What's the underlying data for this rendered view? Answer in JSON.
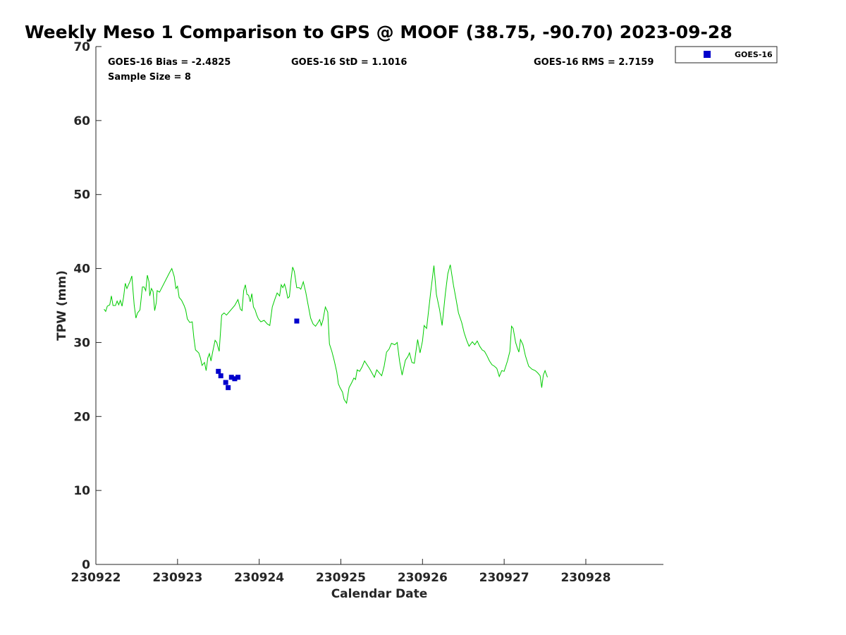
{
  "chart_data": {
    "type": "scatter",
    "title": "Weekly Meso 1 Comparison to GPS @ MOOF (38.75, -90.70) 2023-09-28",
    "xlabel": "Calendar Date",
    "ylabel": "TPW (mm)",
    "xlim": [
      230922,
      230928.95
    ],
    "ylim": [
      0,
      70
    ],
    "x_ticks": [
      230922,
      230923,
      230924,
      230925,
      230926,
      230927,
      230928
    ],
    "x_tick_labels": [
      "230922",
      "230923",
      "230924",
      "230925",
      "230926",
      "230927",
      "230928"
    ],
    "y_ticks": [
      0,
      10,
      20,
      30,
      40,
      50,
      60,
      70
    ],
    "y_tick_labels": [
      "0",
      "10",
      "20",
      "30",
      "40",
      "50",
      "60",
      "70"
    ],
    "grid": false,
    "legend_position": "top-right, outside plot",
    "stats": {
      "bias": "GOES-16 Bias = -2.4825",
      "std": "GOES-16 StD = 1.1016",
      "rms": "GOES-16 RMS = 2.7159",
      "sample": "Sample Size = 8"
    },
    "series": [
      {
        "name": "GOES-16",
        "kind": "scatter",
        "marker": "square",
        "color": "#0000cc",
        "points": [
          [
            230923.5,
            26.1
          ],
          [
            230923.53,
            25.5
          ],
          [
            230923.59,
            24.6
          ],
          [
            230923.62,
            23.9
          ],
          [
            230923.66,
            25.3
          ],
          [
            230923.7,
            25.1
          ],
          [
            230923.74,
            25.3
          ],
          [
            230924.46,
            32.9
          ]
        ]
      },
      {
        "kind": "line",
        "color": "#00cc00",
        "points": [
          [
            230922.1,
            34.5
          ],
          [
            230922.12,
            34.2
          ],
          [
            230922.14,
            34.9
          ],
          [
            230922.17,
            35.1
          ],
          [
            230922.19,
            36.3
          ],
          [
            230922.21,
            35.0
          ],
          [
            230922.24,
            35.0
          ],
          [
            230922.26,
            35.6
          ],
          [
            230922.28,
            35.1
          ],
          [
            230922.3,
            35.7
          ],
          [
            230922.32,
            34.9
          ],
          [
            230922.34,
            36.2
          ],
          [
            230922.36,
            38.0
          ],
          [
            230922.38,
            37.3
          ],
          [
            230922.4,
            37.8
          ],
          [
            230922.42,
            38.3
          ],
          [
            230922.44,
            39.0
          ],
          [
            230922.47,
            35.0
          ],
          [
            230922.49,
            33.3
          ],
          [
            230922.51,
            34.0
          ],
          [
            230922.54,
            34.4
          ],
          [
            230922.57,
            37.5
          ],
          [
            230922.59,
            37.5
          ],
          [
            230922.61,
            37.0
          ],
          [
            230922.63,
            39.1
          ],
          [
            230922.65,
            38.2
          ],
          [
            230922.66,
            36.3
          ],
          [
            230922.68,
            37.3
          ],
          [
            230922.7,
            36.9
          ],
          [
            230922.72,
            34.3
          ],
          [
            230922.74,
            35.4
          ],
          [
            230922.75,
            37.0
          ],
          [
            230922.78,
            36.8
          ],
          [
            230922.9,
            39.4
          ],
          [
            230922.93,
            40.0
          ],
          [
            230922.96,
            38.9
          ],
          [
            230922.98,
            37.3
          ],
          [
            230923.0,
            37.6
          ],
          [
            230923.02,
            36.1
          ],
          [
            230923.05,
            35.7
          ],
          [
            230923.08,
            35.0
          ],
          [
            230923.1,
            34.4
          ],
          [
            230923.12,
            33.2
          ],
          [
            230923.15,
            32.7
          ],
          [
            230923.18,
            32.8
          ],
          [
            230923.2,
            30.6
          ],
          [
            230923.22,
            29.0
          ],
          [
            230923.26,
            28.6
          ],
          [
            230923.28,
            27.9
          ],
          [
            230923.3,
            26.9
          ],
          [
            230923.33,
            27.3
          ],
          [
            230923.35,
            26.2
          ],
          [
            230923.37,
            27.9
          ],
          [
            230923.39,
            28.5
          ],
          [
            230923.41,
            27.5
          ],
          [
            230923.43,
            28.7
          ],
          [
            230923.46,
            30.3
          ],
          [
            230923.48,
            30.0
          ],
          [
            230923.51,
            28.8
          ],
          [
            230923.54,
            33.7
          ],
          [
            230923.57,
            34.0
          ],
          [
            230923.6,
            33.7
          ],
          [
            230923.7,
            35.0
          ],
          [
            230923.74,
            35.8
          ],
          [
            230923.77,
            34.5
          ],
          [
            230923.79,
            34.3
          ],
          [
            230923.81,
            37.0
          ],
          [
            230923.83,
            37.8
          ],
          [
            230923.85,
            36.5
          ],
          [
            230923.87,
            36.4
          ],
          [
            230923.89,
            35.5
          ],
          [
            230923.91,
            36.6
          ],
          [
            230923.93,
            34.8
          ],
          [
            230923.95,
            34.4
          ],
          [
            230923.97,
            33.7
          ],
          [
            230923.99,
            33.2
          ],
          [
            230924.02,
            32.8
          ],
          [
            230924.06,
            33.0
          ],
          [
            230924.1,
            32.5
          ],
          [
            230924.13,
            32.3
          ],
          [
            230924.16,
            34.8
          ],
          [
            230924.19,
            35.8
          ],
          [
            230924.22,
            36.7
          ],
          [
            230924.25,
            36.3
          ],
          [
            230924.27,
            37.8
          ],
          [
            230924.29,
            37.4
          ],
          [
            230924.31,
            37.9
          ],
          [
            230924.33,
            37.1
          ],
          [
            230924.35,
            36.0
          ],
          [
            230924.37,
            36.2
          ],
          [
            230924.39,
            38.5
          ],
          [
            230924.41,
            40.2
          ],
          [
            230924.43,
            39.6
          ],
          [
            230924.46,
            37.4
          ],
          [
            230924.49,
            37.4
          ],
          [
            230924.51,
            37.2
          ],
          [
            230924.54,
            38.2
          ],
          [
            230924.57,
            36.8
          ],
          [
            230924.6,
            35.0
          ],
          [
            230924.63,
            33.3
          ],
          [
            230924.66,
            32.5
          ],
          [
            230924.69,
            32.2
          ],
          [
            230924.72,
            32.7
          ],
          [
            230924.74,
            33.1
          ],
          [
            230924.76,
            32.3
          ],
          [
            230924.78,
            33.0
          ],
          [
            230924.81,
            34.8
          ],
          [
            230924.84,
            34.1
          ],
          [
            230924.86,
            29.8
          ],
          [
            230924.89,
            28.8
          ],
          [
            230924.92,
            27.5
          ],
          [
            230924.95,
            26.0
          ],
          [
            230924.97,
            24.4
          ],
          [
            230924.99,
            23.9
          ],
          [
            230925.02,
            23.3
          ],
          [
            230925.04,
            22.3
          ],
          [
            230925.07,
            21.8
          ],
          [
            230925.1,
            23.9
          ],
          [
            230925.13,
            24.5
          ],
          [
            230925.16,
            25.2
          ],
          [
            230925.18,
            25.0
          ],
          [
            230925.2,
            26.3
          ],
          [
            230925.23,
            26.1
          ],
          [
            230925.26,
            26.7
          ],
          [
            230925.29,
            27.5
          ],
          [
            230925.35,
            26.5
          ],
          [
            230925.41,
            25.3
          ],
          [
            230925.44,
            26.3
          ],
          [
            230925.47,
            25.9
          ],
          [
            230925.5,
            25.5
          ],
          [
            230925.53,
            26.8
          ],
          [
            230925.56,
            28.7
          ],
          [
            230925.59,
            29.1
          ],
          [
            230925.62,
            29.9
          ],
          [
            230925.66,
            29.7
          ],
          [
            230925.69,
            30.0
          ],
          [
            230925.72,
            27.4
          ],
          [
            230925.75,
            25.6
          ],
          [
            230925.79,
            27.6
          ],
          [
            230925.82,
            28.1
          ],
          [
            230925.84,
            28.6
          ],
          [
            230925.87,
            27.3
          ],
          [
            230925.9,
            27.2
          ],
          [
            230925.92,
            28.8
          ],
          [
            230925.94,
            30.4
          ],
          [
            230925.97,
            28.6
          ],
          [
            230926.0,
            30.2
          ],
          [
            230926.02,
            32.3
          ],
          [
            230926.05,
            31.9
          ],
          [
            230926.1,
            36.8
          ],
          [
            230926.14,
            40.4
          ],
          [
            230926.17,
            36.5
          ],
          [
            230926.21,
            34.4
          ],
          [
            230926.24,
            32.3
          ],
          [
            230926.28,
            36.6
          ],
          [
            230926.31,
            39.3
          ],
          [
            230926.34,
            40.5
          ],
          [
            230926.38,
            37.7
          ],
          [
            230926.41,
            35.9
          ],
          [
            230926.44,
            34.0
          ],
          [
            230926.48,
            32.7
          ],
          [
            230926.51,
            31.3
          ],
          [
            230926.54,
            30.3
          ],
          [
            230926.57,
            29.5
          ],
          [
            230926.61,
            30.1
          ],
          [
            230926.64,
            29.7
          ],
          [
            230926.67,
            30.2
          ],
          [
            230926.7,
            29.5
          ],
          [
            230926.73,
            29.0
          ],
          [
            230926.76,
            28.8
          ],
          [
            230926.79,
            28.2
          ],
          [
            230926.82,
            27.5
          ],
          [
            230926.85,
            27.0
          ],
          [
            230926.88,
            26.8
          ],
          [
            230926.91,
            26.5
          ],
          [
            230926.94,
            25.4
          ],
          [
            230926.97,
            26.2
          ],
          [
            230927.0,
            26.1
          ],
          [
            230927.04,
            27.5
          ],
          [
            230927.07,
            28.8
          ],
          [
            230927.09,
            32.2
          ],
          [
            230927.11,
            31.9
          ],
          [
            230927.14,
            30.0
          ],
          [
            230927.16,
            29.3
          ],
          [
            230927.18,
            28.7
          ],
          [
            230927.2,
            30.4
          ],
          [
            230927.23,
            29.7
          ],
          [
            230927.26,
            28.2
          ],
          [
            230927.3,
            26.8
          ],
          [
            230927.34,
            26.4
          ],
          [
            230927.38,
            26.2
          ],
          [
            230927.41,
            25.9
          ],
          [
            230927.44,
            25.5
          ],
          [
            230927.46,
            23.9
          ],
          [
            230927.48,
            25.6
          ],
          [
            230927.5,
            26.2
          ],
          [
            230927.53,
            25.3
          ]
        ]
      }
    ]
  }
}
